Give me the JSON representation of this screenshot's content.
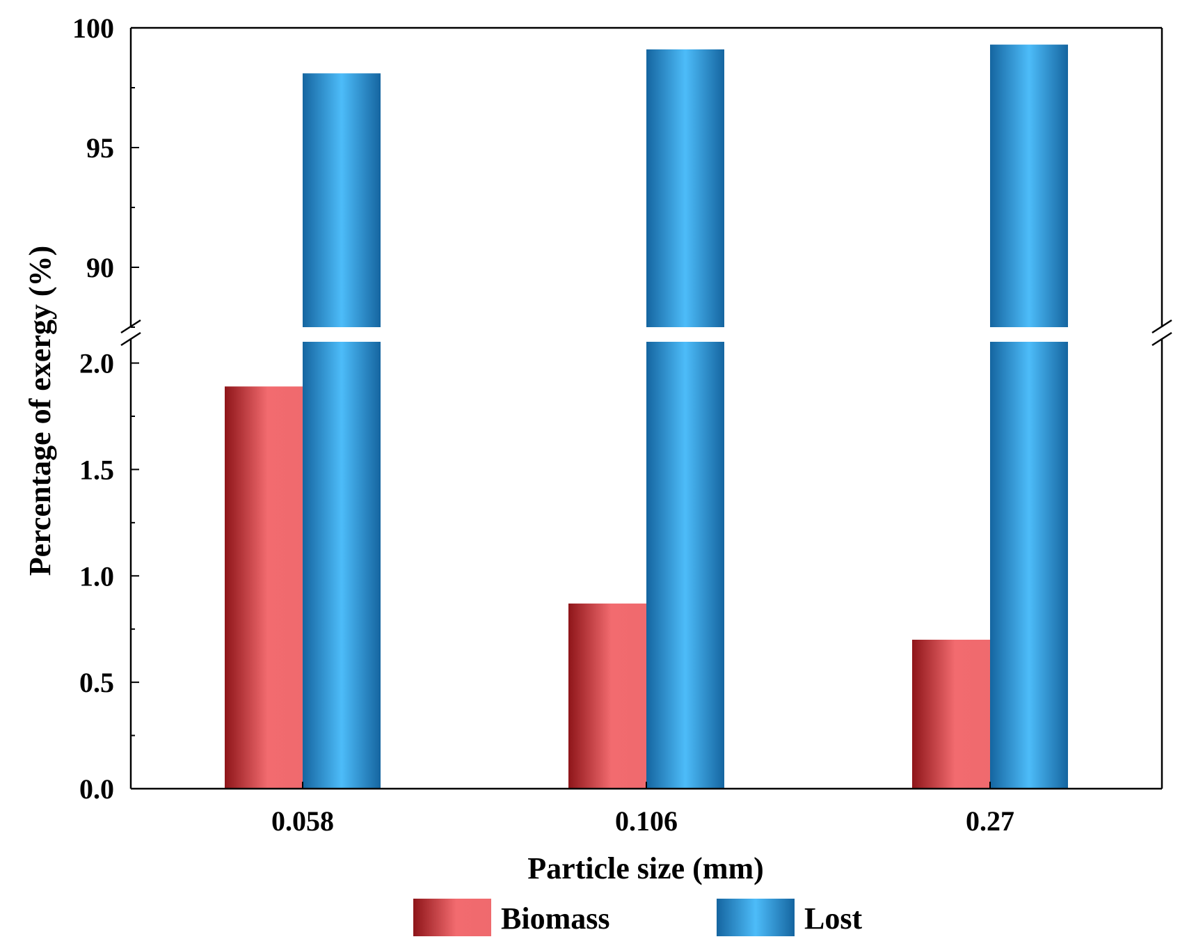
{
  "chart_data": {
    "type": "bar",
    "title": "",
    "xlabel": "Particle size (mm)",
    "ylabel": "Percentage of exergy (%)",
    "categories": [
      "0.058",
      "0.106",
      "0.27"
    ],
    "series": [
      {
        "name": "Biomass",
        "values": [
          1.89,
          0.87,
          0.7
        ],
        "color_dark": "#8e1519",
        "color_light": "#f26b6f"
      },
      {
        "name": "Lost",
        "values": [
          98.1,
          99.1,
          99.3
        ],
        "color_dark": "#1565a0",
        "color_light": "#4dbcf9"
      }
    ],
    "y_axis_broken": true,
    "lower_segment": {
      "ylim": [
        0.0,
        2.1
      ],
      "ticks": [
        "0.0",
        "0.5",
        "1.0",
        "1.5",
        "2.0"
      ],
      "tick_values": [
        0.0,
        0.5,
        1.0,
        1.5,
        2.0
      ]
    },
    "upper_segment": {
      "ylim": [
        87.5,
        100
      ],
      "ticks": [
        "90",
        "95",
        "100"
      ],
      "tick_values": [
        90,
        95,
        100
      ]
    },
    "legend_position": "bottom-center",
    "grid": false
  }
}
